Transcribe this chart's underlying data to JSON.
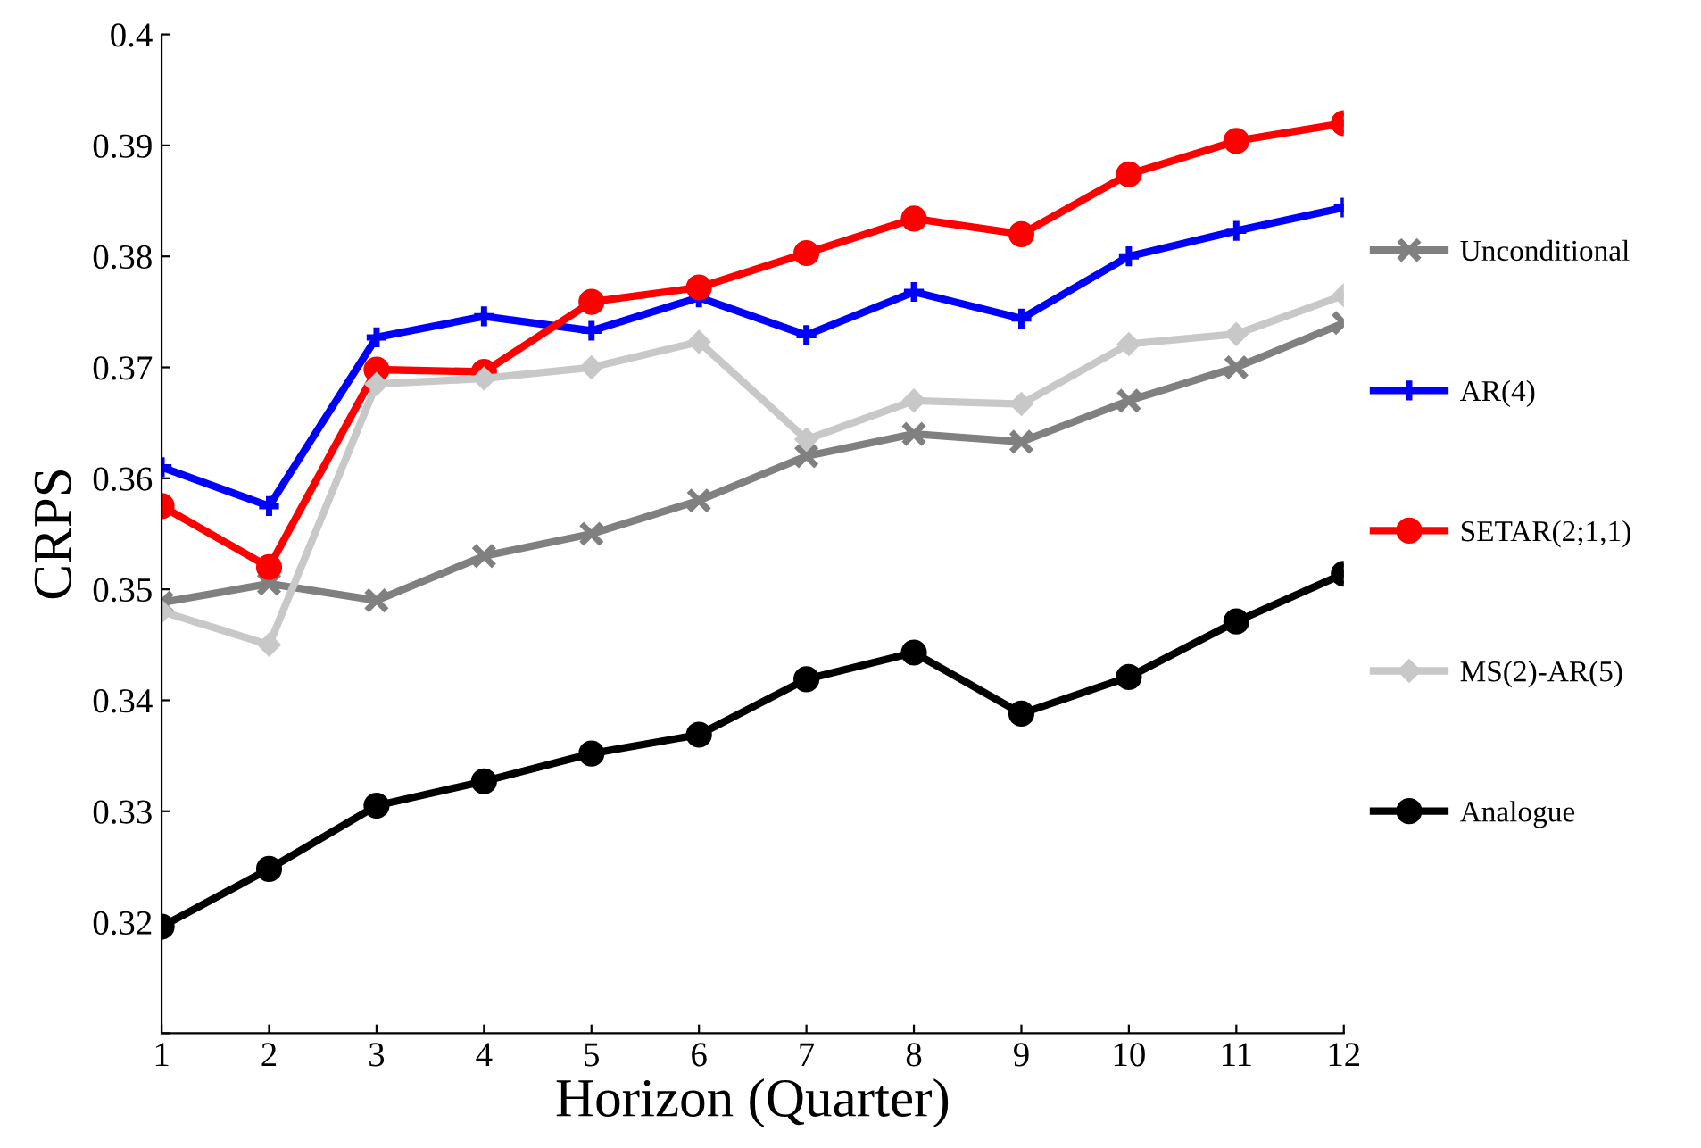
{
  "chart_data": {
    "type": "line",
    "xlabel": "Horizon (Quarter)",
    "ylabel": "CRPS",
    "x": [
      1,
      2,
      3,
      4,
      5,
      6,
      7,
      8,
      9,
      10,
      11,
      12
    ],
    "xlim": [
      1,
      12
    ],
    "xticks": [
      1,
      2,
      3,
      4,
      5,
      6,
      7,
      8,
      9,
      10,
      11,
      12
    ],
    "ylim": [
      0.31,
      0.4
    ],
    "yticks": [
      {
        "value": 0.31,
        "label": null
      },
      0.32,
      0.33,
      0.34,
      0.35,
      0.36,
      0.37,
      0.38,
      0.39,
      {
        "value": 0.4,
        "label": "0.4"
      }
    ],
    "grid": false,
    "legend": "right",
    "line_style": "solid",
    "series": [
      {
        "name": "Unconditional",
        "color": "#808080",
        "marker": "cross",
        "values": [
          0.3488,
          0.3505,
          0.349,
          0.353,
          0.355,
          0.358,
          0.362,
          0.364,
          0.3633,
          0.367,
          0.37,
          0.374
        ]
      },
      {
        "name": "AR(4)",
        "color": "#0000ff",
        "marker": "plus",
        "values": [
          0.361,
          0.3575,
          0.3727,
          0.3746,
          0.3733,
          0.3763,
          0.3729,
          0.3768,
          0.3744,
          0.38,
          0.3823,
          0.3844
        ]
      },
      {
        "name": "SETAR(2;1,1)",
        "color": "#ff0000",
        "marker": "circle",
        "values": [
          0.3575,
          0.352,
          0.3698,
          0.3696,
          0.3759,
          0.3772,
          0.3803,
          0.3834,
          0.382,
          0.3874,
          0.3904,
          0.392
        ]
      },
      {
        "name": "MS(2)-AR(5)",
        "color": "#c8c8c8",
        "marker": "diamond",
        "values": [
          0.348,
          0.345,
          0.3685,
          0.369,
          0.37,
          0.3723,
          0.3635,
          0.367,
          0.3667,
          0.3721,
          0.373,
          0.3765
        ]
      },
      {
        "name": "Analogue",
        "color": "#000000",
        "marker": "circle",
        "values": [
          0.3196,
          0.3248,
          0.3305,
          0.3327,
          0.3352,
          0.3369,
          0.3419,
          0.3443,
          0.3388,
          0.3421,
          0.3471,
          0.3514
        ]
      }
    ]
  }
}
